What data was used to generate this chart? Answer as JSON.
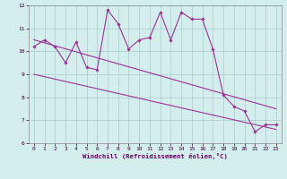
{
  "xlabel": "Windchill (Refroidissement éolien,°C)",
  "x_values": [
    0,
    1,
    2,
    3,
    4,
    5,
    6,
    7,
    8,
    9,
    10,
    11,
    12,
    13,
    14,
    15,
    16,
    17,
    18,
    19,
    20,
    21,
    22,
    23
  ],
  "line_main": [
    10.2,
    10.5,
    10.2,
    9.5,
    10.4,
    9.3,
    9.2,
    11.8,
    11.2,
    10.1,
    10.5,
    10.6,
    11.7,
    10.5,
    11.7,
    11.4,
    11.4,
    10.1,
    8.1,
    7.6,
    7.4,
    6.5,
    6.8,
    6.8
  ],
  "trend1_x": [
    0,
    23
  ],
  "trend1_y": [
    10.5,
    7.5
  ],
  "trend2_x": [
    0,
    23
  ],
  "trend2_y": [
    9.0,
    6.6
  ],
  "ylim": [
    6,
    12
  ],
  "xlim": [
    -0.5,
    23.5
  ],
  "yticks": [
    6,
    7,
    8,
    9,
    10,
    11,
    12
  ],
  "xticks": [
    0,
    1,
    2,
    3,
    4,
    5,
    6,
    7,
    8,
    9,
    10,
    11,
    12,
    13,
    14,
    15,
    16,
    17,
    18,
    19,
    20,
    21,
    22,
    23
  ],
  "line_color": "#993399",
  "bg_color": "#d4eeee",
  "grid_color": "#aacccc",
  "xlabel_color": "#660066",
  "tick_color": "#330033"
}
